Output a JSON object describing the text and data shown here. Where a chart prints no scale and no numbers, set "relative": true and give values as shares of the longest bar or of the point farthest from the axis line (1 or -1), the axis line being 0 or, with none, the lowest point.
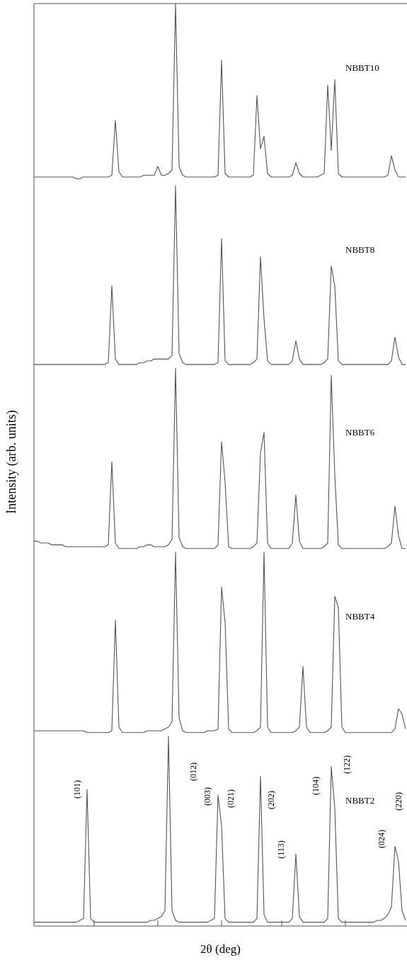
{
  "chart_data": [
    {
      "type": "line",
      "relative": true,
      "categories": [
        null,
        null,
        null,
        null,
        null,
        null,
        null,
        null,
        null,
        null,
        null,
        null,
        null,
        null,
        null,
        null,
        null,
        null,
        null,
        null,
        null,
        null,
        null,
        null,
        null,
        null,
        null,
        null,
        null,
        null,
        null,
        null,
        null,
        null,
        null,
        null,
        null,
        null,
        null,
        null,
        null,
        null,
        null,
        null,
        null,
        null,
        null,
        null,
        null,
        null,
        null,
        null,
        null,
        null,
        null,
        null,
        null,
        null,
        null,
        null,
        null,
        null,
        null,
        null,
        null,
        null,
        null,
        null,
        null,
        null,
        null,
        null,
        null,
        null,
        null,
        null,
        null,
        null,
        null,
        null,
        null,
        null,
        null,
        null,
        null,
        null,
        null,
        null,
        null,
        null,
        null,
        null,
        null,
        null,
        null,
        null,
        null,
        null,
        null,
        null,
        null,
        null,
        null,
        null,
        null,
        null
      ],
      "series": [
        {
          "name": "NBBT10",
          "color": "#555555",
          "values": [
            0.02,
            0.02,
            0.02,
            0.02,
            0.02,
            0.02,
            0.02,
            0.02,
            0.02,
            0.02,
            0.02,
            0.02,
            0.01,
            0.01,
            0.02,
            0.02,
            0.02,
            0.02,
            0.02,
            0.02,
            0.02,
            0.02,
            0.03,
            0.34,
            0.05,
            0.02,
            0.02,
            0.02,
            0.02,
            0.02,
            0.02,
            0.03,
            0.03,
            0.03,
            0.03,
            0.08,
            0.03,
            0.03,
            0.04,
            0.06,
            1,
            0.08,
            0.03,
            0.02,
            0.02,
            0.02,
            0.02,
            0.02,
            0.02,
            0.02,
            0.02,
            0.02,
            0.03,
            0.68,
            0.04,
            0.02,
            0.02,
            0.02,
            0.02,
            0.02,
            0.02,
            0.02,
            0.03,
            0.48,
            0.18,
            0.25,
            0.04,
            0.02,
            0.02,
            0.02,
            0.02,
            0.02,
            0.02,
            0.03,
            0.1,
            0.04,
            0.02,
            0.02,
            0.02,
            0.02,
            0.02,
            0.03,
            0.04,
            0.54,
            0.17,
            0.57,
            0.04,
            0.02,
            0.02,
            0.02,
            0.02,
            0.02,
            0.02,
            0.02,
            0.02,
            0.02,
            0.02,
            0.02,
            0.02,
            0.02,
            0.03,
            0.14,
            0.06,
            0.02,
            0.02,
            0.02
          ]
        }
      ]
    },
    {
      "type": "line",
      "relative": true,
      "categories": [
        null,
        null,
        null,
        null,
        null,
        null,
        null,
        null,
        null,
        null,
        null,
        null,
        null,
        null,
        null,
        null,
        null,
        null,
        null,
        null,
        null,
        null,
        null,
        null,
        null,
        null,
        null,
        null,
        null,
        null,
        null,
        null,
        null,
        null,
        null,
        null,
        null,
        null,
        null,
        null,
        null,
        null,
        null,
        null,
        null,
        null,
        null,
        null,
        null,
        null,
        null,
        null,
        null,
        null,
        null,
        null,
        null,
        null,
        null,
        null,
        null,
        null,
        null,
        null,
        null,
        null,
        null,
        null,
        null,
        null,
        null,
        null,
        null,
        null,
        null,
        null,
        null,
        null,
        null,
        null,
        null,
        null,
        null,
        null,
        null,
        null,
        null,
        null,
        null,
        null,
        null,
        null,
        null,
        null,
        null,
        null,
        null,
        null,
        null,
        null,
        null,
        null,
        null,
        null,
        null,
        null
      ],
      "series": [
        {
          "name": "NBBT8",
          "color": "#555555",
          "values": [
            0.02,
            0.02,
            0.02,
            0.02,
            0.02,
            0.02,
            0.02,
            0.02,
            0.02,
            0.02,
            0.02,
            0.02,
            0.02,
            0.02,
            0.02,
            0.02,
            0.02,
            0.02,
            0.02,
            0.02,
            0.02,
            0.03,
            0.45,
            0.05,
            0.02,
            0.02,
            0.02,
            0.02,
            0.02,
            0.02,
            0.03,
            0.03,
            0.04,
            0.04,
            0.05,
            0.05,
            0.05,
            0.05,
            0.05,
            0.07,
            1,
            0.08,
            0.03,
            0.02,
            0.02,
            0.02,
            0.02,
            0.02,
            0.02,
            0.02,
            0.02,
            0.02,
            0.03,
            0.71,
            0.04,
            0.02,
            0.02,
            0.02,
            0.02,
            0.02,
            0.02,
            0.02,
            0.03,
            0.05,
            0.61,
            0.27,
            0.04,
            0.02,
            0.02,
            0.02,
            0.02,
            0.02,
            0.02,
            0.04,
            0.15,
            0.05,
            0.02,
            0.02,
            0.02,
            0.02,
            0.02,
            0.02,
            0.03,
            0.05,
            0.56,
            0.45,
            0.04,
            0.02,
            0.02,
            0.02,
            0.02,
            0.02,
            0.02,
            0.02,
            0.02,
            0.02,
            0.02,
            0.02,
            0.02,
            0.02,
            0.02,
            0.04,
            0.17,
            0.06,
            0.02,
            0.02
          ]
        }
      ]
    },
    {
      "type": "line",
      "relative": true,
      "ylabel": "Intensity (arb. units)",
      "categories": [
        null,
        null,
        null,
        null,
        null,
        null,
        null,
        null,
        null,
        null,
        null,
        null,
        null,
        null,
        null,
        null,
        null,
        null,
        null,
        null,
        null,
        null,
        null,
        null,
        null,
        null,
        null,
        null,
        null,
        null,
        null,
        null,
        null,
        null,
        null,
        null,
        null,
        null,
        null,
        null,
        null,
        null,
        null,
        null,
        null,
        null,
        null,
        null,
        null,
        null,
        null,
        null,
        null,
        null,
        null,
        null,
        null,
        null,
        null,
        null,
        null,
        null,
        null,
        null,
        null,
        null,
        null,
        null,
        null,
        null,
        null,
        null,
        null,
        null,
        null,
        null,
        null,
        null,
        null,
        null,
        null,
        null,
        null,
        null,
        null,
        null,
        null,
        null,
        null,
        null,
        null,
        null,
        null,
        null,
        null,
        null,
        null,
        null,
        null,
        null,
        null,
        null,
        null,
        null,
        null,
        null
      ],
      "series": [
        {
          "name": "NBBT6",
          "color": "#555555",
          "values": [
            0.06,
            0.06,
            0.05,
            0.05,
            0.05,
            0.04,
            0.04,
            0.04,
            0.04,
            0.03,
            0.03,
            0.03,
            0.03,
            0.03,
            0.03,
            0.03,
            0.03,
            0.03,
            0.03,
            0.03,
            0.03,
            0.04,
            0.49,
            0.05,
            0.02,
            0.02,
            0.02,
            0.02,
            0.02,
            0.02,
            0.03,
            0.03,
            0.04,
            0.04,
            0.03,
            0.03,
            0.03,
            0.03,
            0.04,
            0.07,
            1,
            0.08,
            0.03,
            0.02,
            0.02,
            0.02,
            0.02,
            0.02,
            0.02,
            0.02,
            0.02,
            0.02,
            0.04,
            0.6,
            0.38,
            0.03,
            0.02,
            0.02,
            0.02,
            0.02,
            0.02,
            0.02,
            0.03,
            0.05,
            0.54,
            0.65,
            0.05,
            0.02,
            0.02,
            0.02,
            0.02,
            0.02,
            0.02,
            0.05,
            0.31,
            0.06,
            0.02,
            0.02,
            0.02,
            0.02,
            0.02,
            0.02,
            0.03,
            0.05,
            0.96,
            0.42,
            0.04,
            0.02,
            0.02,
            0.02,
            0.02,
            0.02,
            0.02,
            0.02,
            0.02,
            0.02,
            0.02,
            0.02,
            0.02,
            0.02,
            0.03,
            0.05,
            0.25,
            0.09,
            0.02,
            0.02
          ]
        }
      ]
    },
    {
      "type": "line",
      "relative": true,
      "categories": [
        null,
        null,
        null,
        null,
        null,
        null,
        null,
        null,
        null,
        null,
        null,
        null,
        null,
        null,
        null,
        null,
        null,
        null,
        null,
        null,
        null,
        null,
        null,
        null,
        null,
        null,
        null,
        null,
        null,
        null,
        null,
        null,
        null,
        null,
        null,
        null,
        null,
        null,
        null,
        null,
        null,
        null,
        null,
        null,
        null,
        null,
        null,
        null,
        null,
        null,
        null,
        null,
        null,
        null,
        null,
        null,
        null,
        null,
        null,
        null,
        null,
        null,
        null,
        null,
        null,
        null,
        null,
        null,
        null,
        null,
        null,
        null,
        null,
        null,
        null,
        null,
        null,
        null,
        null,
        null,
        null,
        null,
        null,
        null,
        null,
        null,
        null,
        null,
        null,
        null,
        null,
        null,
        null,
        null,
        null,
        null,
        null,
        null,
        null,
        null,
        null,
        null,
        null,
        null,
        null,
        null
      ],
      "series": [
        {
          "name": "NBBT4",
          "color": "#555555",
          "values": [
            0.03,
            0.03,
            0.03,
            0.03,
            0.03,
            0.03,
            0.03,
            0.03,
            0.03,
            0.03,
            0.03,
            0.03,
            0.03,
            0.03,
            0.03,
            0.02,
            0.02,
            0.02,
            0.02,
            0.02,
            0.02,
            0.02,
            0.03,
            0.63,
            0.05,
            0.02,
            0.02,
            0.02,
            0.02,
            0.02,
            0.02,
            0.02,
            0.03,
            0.03,
            0.03,
            0.03,
            0.03,
            0.04,
            0.05,
            0.08,
            1,
            0.1,
            0.03,
            0.02,
            0.02,
            0.02,
            0.02,
            0.02,
            0.02,
            0.03,
            0.03,
            0.03,
            0.04,
            0.81,
            0.62,
            0.04,
            0.02,
            0.02,
            0.02,
            0.02,
            0.02,
            0.02,
            0.02,
            0.03,
            0.05,
            1,
            0.05,
            0.02,
            0.02,
            0.02,
            0.02,
            0.02,
            0.02,
            0.02,
            0.03,
            0.05,
            0.38,
            0.05,
            0.02,
            0.02,
            0.02,
            0.02,
            0.02,
            0.03,
            0.05,
            0.76,
            0.7,
            0.05,
            0.02,
            0.02,
            0.02,
            0.02,
            0.02,
            0.02,
            0.02,
            0.02,
            0.02,
            0.02,
            0.02,
            0.02,
            0.02,
            0.02,
            0.04,
            0.15,
            0.12,
            0.04
          ]
        }
      ]
    },
    {
      "type": "line",
      "relative": true,
      "xlabel": "2θ (deg)",
      "annotations": [
        "(101)",
        "(012)",
        "(003)",
        "(021)",
        "(202)",
        "(113)",
        "(104)",
        "(122)",
        "(024)",
        "(220)"
      ],
      "categories": [
        null,
        null,
        null,
        null,
        null,
        null,
        null,
        null,
        null,
        null,
        null,
        null,
        null,
        null,
        null,
        null,
        null,
        null,
        null,
        null,
        null,
        null,
        null,
        null,
        null,
        null,
        null,
        null,
        null,
        null,
        null,
        null,
        null,
        null,
        null,
        null,
        null,
        null,
        null,
        null,
        null,
        null,
        null,
        null,
        null,
        null,
        null,
        null,
        null,
        null,
        null,
        null,
        null,
        null,
        null,
        null,
        null,
        null,
        null,
        null,
        null,
        null,
        null,
        null,
        null,
        null,
        null,
        null,
        null,
        null,
        null,
        null,
        null,
        null,
        null,
        null,
        null,
        null,
        null,
        null,
        null,
        null,
        null,
        null,
        null,
        null,
        null,
        null,
        null,
        null,
        null,
        null,
        null,
        null,
        null,
        null,
        null,
        null,
        null,
        null,
        null,
        null,
        null,
        null,
        null,
        null
      ],
      "series": [
        {
          "name": "NBBT2",
          "color": "#555555",
          "values": [
            0.02,
            0.02,
            0.02,
            0.02,
            0.02,
            0.02,
            0.02,
            0.02,
            0.02,
            0.02,
            0.02,
            0.02,
            0.02,
            0.03,
            0.04,
            0.72,
            0.04,
            0.02,
            0.02,
            0.02,
            0.02,
            0.02,
            0.02,
            0.02,
            0.02,
            0.02,
            0.02,
            0.02,
            0.02,
            0.02,
            0.02,
            0.02,
            0.02,
            0.03,
            0.03,
            0.04,
            0.05,
            0.08,
            1,
            0.08,
            0.03,
            0.02,
            0.02,
            0.02,
            0.02,
            0.02,
            0.02,
            0.02,
            0.02,
            0.02,
            0.03,
            0.04,
            0.69,
            0.53,
            0.04,
            0.02,
            0.02,
            0.02,
            0.02,
            0.02,
            0.02,
            0.02,
            0.02,
            0.04,
            0.79,
            0.06,
            0.02,
            0.02,
            0.02,
            0.02,
            0.02,
            0.02,
            0.02,
            0.04,
            0.38,
            0.05,
            0.02,
            0.02,
            0.02,
            0.02,
            0.02,
            0.02,
            0.02,
            0.04,
            0.84,
            0.62,
            0.04,
            0.02,
            0.02,
            0.02,
            0.02,
            0.02,
            0.02,
            0.02,
            0.02,
            0.02,
            0.02,
            0.03,
            0.03,
            0.04,
            0.06,
            0.1,
            0.42,
            0.34,
            0.08,
            0.03
          ]
        }
      ]
    }
  ]
}
